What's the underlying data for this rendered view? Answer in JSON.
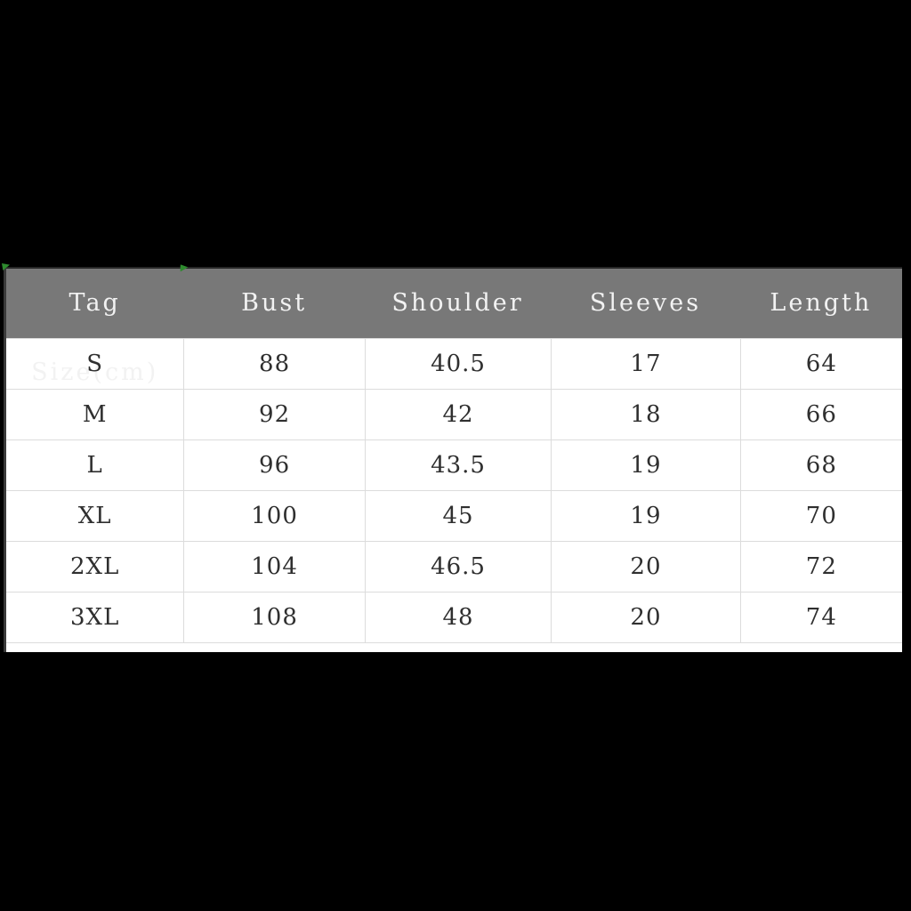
{
  "page": {
    "background_color": "#000000",
    "description": "Garment size chart table on black background"
  },
  "chart_data": {
    "type": "table",
    "title": "Tag Size(cm)",
    "columns": [
      "Tag Size(cm)",
      "Bust",
      "Shoulder",
      "Sleeves",
      "Length"
    ],
    "rows": [
      [
        "S",
        "88",
        "40.5",
        "17",
        "64"
      ],
      [
        "M",
        "92",
        "42",
        "18",
        "66"
      ],
      [
        "L",
        "96",
        "43.5",
        "19",
        "68"
      ],
      [
        "XL",
        "100",
        "45",
        "19",
        "70"
      ],
      [
        "2XL",
        "104",
        "46.5",
        "20",
        "72"
      ],
      [
        "3XL",
        "108",
        "48",
        "20",
        "74"
      ]
    ]
  },
  "colors": {
    "page_background": "#000000",
    "header_background": "#787878",
    "header_text": "#f2f2f2",
    "row_background": "#ffffff",
    "row_text": "#2f2f2f",
    "divider": "#dcdcdc",
    "table_left_border": "#3a3a3a",
    "artifact_green": "#2e8b2e"
  }
}
